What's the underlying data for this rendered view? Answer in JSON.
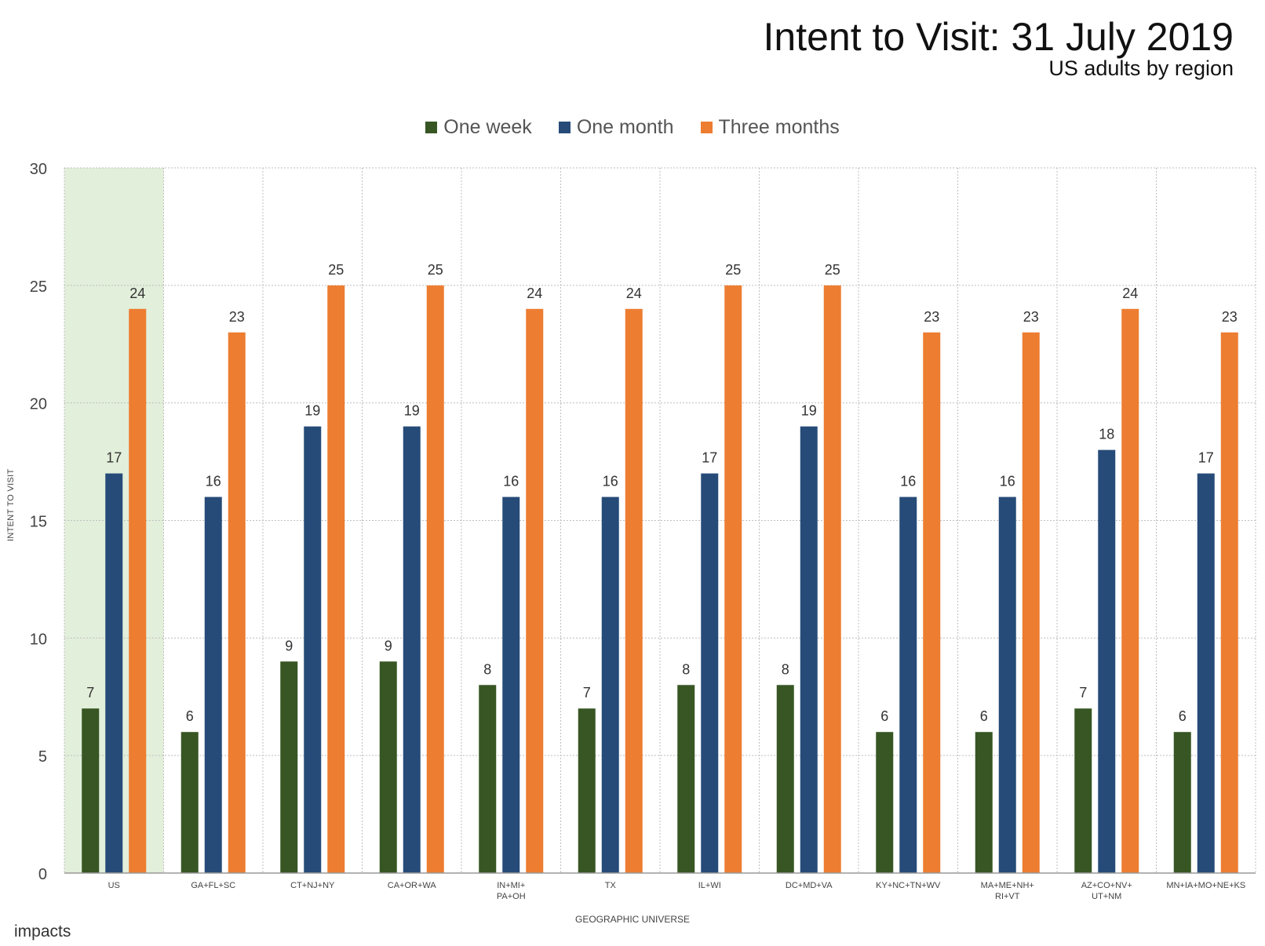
{
  "header": {
    "title": "Intent to Visit: 31 July 2019",
    "subtitle": "US adults by region"
  },
  "footer": {
    "logo": "impacts"
  },
  "colors": {
    "one_week": "#375623",
    "one_month": "#264b78",
    "three_months": "#ed7d31",
    "highlight": "#e2efda",
    "grid": "#bfbfbf"
  },
  "chart_data": {
    "type": "bar",
    "title": "Intent to Visit: 31 July 2019",
    "subtitle": "US adults by region",
    "xlabel": "GEOGRAPHIC UNIVERSE",
    "ylabel": "INTENT TO VISIT",
    "ylim": [
      0,
      30
    ],
    "yticks": [
      0,
      5,
      10,
      15,
      20,
      25,
      30
    ],
    "grid": true,
    "legend_position": "top-center",
    "highlighted_category": "US",
    "categories": [
      "US",
      "GA+FL+SC",
      "CT+NJ+NY",
      "CA+OR+WA",
      "IN+MI+ PA+OH",
      "TX",
      "IL+WI",
      "DC+MD+VA",
      "KY+NC+TN+WV",
      "MA+ME+NH+ RI+VT",
      "AZ+CO+NV+ UT+NM",
      "MN+IA+MO+NE+KS"
    ],
    "series": [
      {
        "name": "One week",
        "values": [
          7,
          6,
          9,
          9,
          8,
          7,
          8,
          8,
          6,
          6,
          7,
          6
        ]
      },
      {
        "name": "One month",
        "values": [
          17,
          16,
          19,
          19,
          16,
          16,
          17,
          19,
          16,
          16,
          18,
          17
        ]
      },
      {
        "name": "Three months",
        "values": [
          24,
          23,
          25,
          25,
          24,
          24,
          25,
          25,
          23,
          23,
          24,
          23
        ]
      }
    ]
  }
}
